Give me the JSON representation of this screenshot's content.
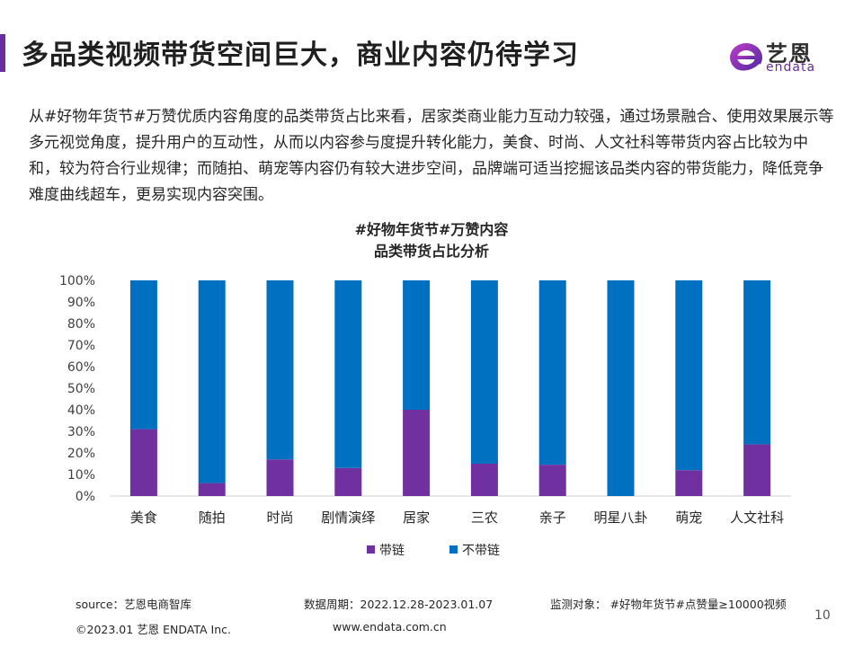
{
  "header": {
    "title": "多品类视频带货空间巨大，商业内容仍待学习",
    "logo_cn": "艺恩",
    "logo_en": "endata"
  },
  "intro": "从#好物年货节#万赞优质内容角度的品类带货占比来看，居家类商业能力互动力较强，通过场景融合、使用效果展示等多元视觉角度，提升用户的互动性，从而以内容参与度提升转化能力，美食、时尚、人文社科等带货内容占比较为中和，较为符合行业规律；而随拍、萌宠等内容仍有较大进步空间，品牌端可适当挖掘该品类内容的带货能力，降低竞争难度曲线超车，更易实现内容突围。",
  "chart_data": {
    "type": "bar",
    "stacked": true,
    "title_line1": "#好物年货节#万赞内容",
    "title_line2": "品类带货占比分析",
    "categories": [
      "美食",
      "随拍",
      "时尚",
      "剧情演绎",
      "居家",
      "三农",
      "亲子",
      "明星八卦",
      "萌宠",
      "人文社科"
    ],
    "series": [
      {
        "name": "带链",
        "color": "#7030a0",
        "values": [
          31,
          6,
          17,
          13,
          40,
          15,
          14.5,
          0,
          12,
          24
        ]
      },
      {
        "name": "不带链",
        "color": "#0070c0",
        "values": [
          69,
          94,
          83,
          87,
          60,
          85,
          85.5,
          100,
          88,
          76
        ]
      }
    ],
    "y_ticks": [
      "0%",
      "10%",
      "20%",
      "30%",
      "40%",
      "50%",
      "60%",
      "70%",
      "80%",
      "90%",
      "100%"
    ],
    "ylim": [
      0,
      100
    ],
    "legend_position": "bottom"
  },
  "footer": {
    "source": "source：艺恩电商智库",
    "period": "数据周期：2022.12.28-2023.01.07",
    "target": "监测对象：  #好物年货节#点赞量≥10000视频",
    "copyright": "©2023.01 艺恩 ENDATA Inc.",
    "website": "www.endata.com.cn",
    "page": "10"
  }
}
